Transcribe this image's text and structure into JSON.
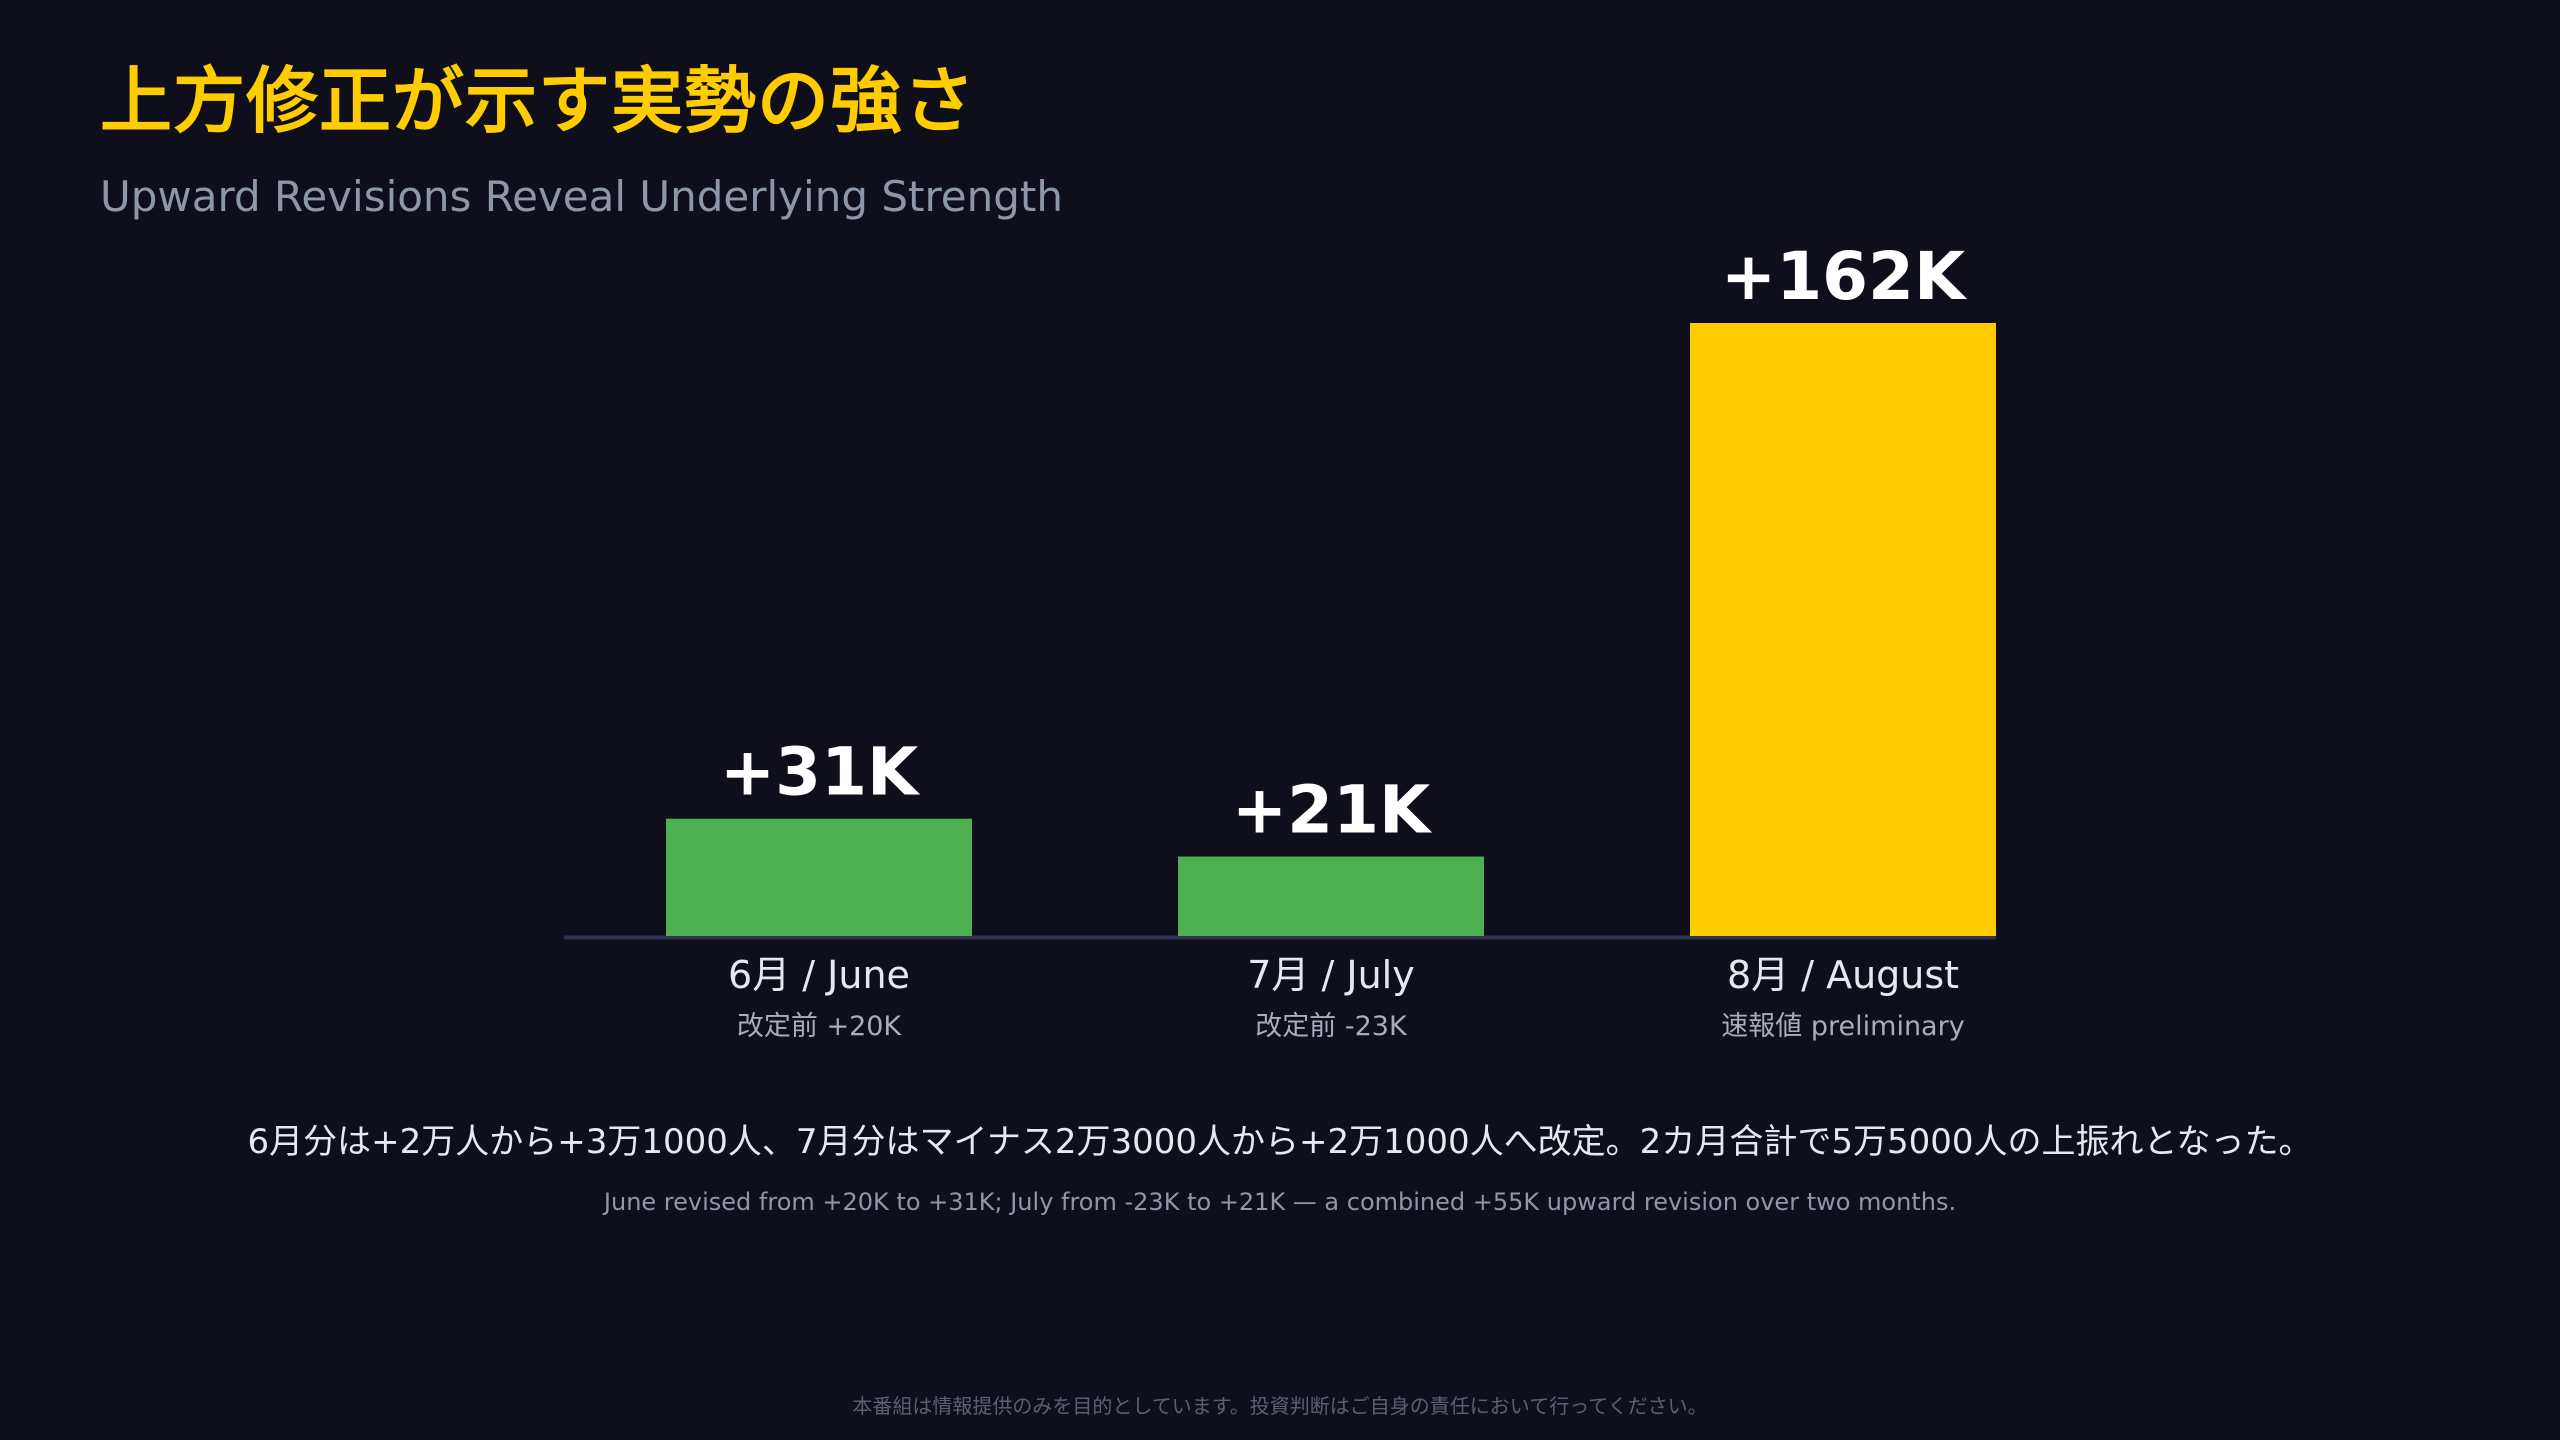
{
  "title": "上方修正が示す実勢の強さ",
  "subtitle": "Upward Revisions Reveal Underlying Strength",
  "chart_data": {
    "type": "bar",
    "categories": [
      "6月 / June",
      "7月 / July",
      "8月 / August"
    ],
    "category_notes": [
      "改定前 +20K",
      "改定前 -23K",
      "速報値 preliminary"
    ],
    "values": [
      31,
      21,
      162
    ],
    "value_labels": [
      "+31K",
      "+21K",
      "+162K"
    ],
    "bar_colors": [
      "#4caf50",
      "#4caf50",
      "#ffcc00"
    ],
    "ylim": [
      0,
      162
    ],
    "grid": false,
    "legend": "none"
  },
  "note_ja": "6月分は+2万人から+3万1000人、7月分はマイナス2万3000人から+2万1000人へ改定。2カ月合計で5万5000人の上振れとなった。",
  "note_en": "June revised from +20K to +31K; July from -23K to +21K — a combined +55K upward revision over two months.",
  "disclaimer": "本番組は情報提供のみを目的としています。投資判断はご自身の責任において行ってください。",
  "colors": {
    "background": "#0f0f1c",
    "title": "#ffcc00",
    "axis": "#2f3250"
  }
}
